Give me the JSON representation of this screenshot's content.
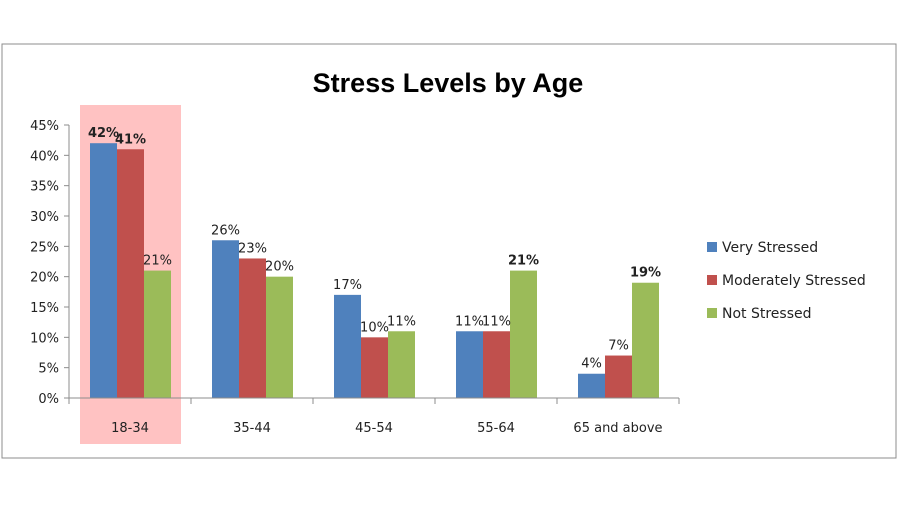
{
  "chart_data": {
    "type": "bar",
    "title": "Stress Levels by Age",
    "categories": [
      "18-34",
      "35-44",
      "45-54",
      "55-64",
      "65 and above"
    ],
    "series": [
      {
        "name": "Very Stressed",
        "color": "#4f81bd",
        "values": [
          42,
          26,
          17,
          11,
          4
        ]
      },
      {
        "name": "Moderately Stressed",
        "color": "#c0504d",
        "values": [
          41,
          23,
          10,
          11,
          7
        ]
      },
      {
        "name": "Not Stressed",
        "color": "#9bbb59",
        "values": [
          21,
          20,
          11,
          21,
          19
        ]
      }
    ],
    "value_labels": [
      [
        "42%",
        "26%",
        "17%",
        "11%",
        "4%"
      ],
      [
        "41%",
        "23%",
        "10%",
        "11%",
        "7%"
      ],
      [
        "21%",
        "20%",
        "11%",
        "21%",
        "19%"
      ]
    ],
    "bold_labels": [
      [
        true,
        false,
        false,
        false,
        false
      ],
      [
        true,
        false,
        false,
        false,
        false
      ],
      [
        false,
        false,
        false,
        true,
        true
      ]
    ],
    "y_ticks": [
      "0%",
      "5%",
      "10%",
      "15%",
      "20%",
      "25%",
      "30%",
      "35%",
      "40%",
      "45%"
    ],
    "ylim": [
      0,
      45
    ],
    "grid": false,
    "legend_position": "right",
    "highlighted_category": "18-34",
    "highlight_color": "#ff9999"
  }
}
